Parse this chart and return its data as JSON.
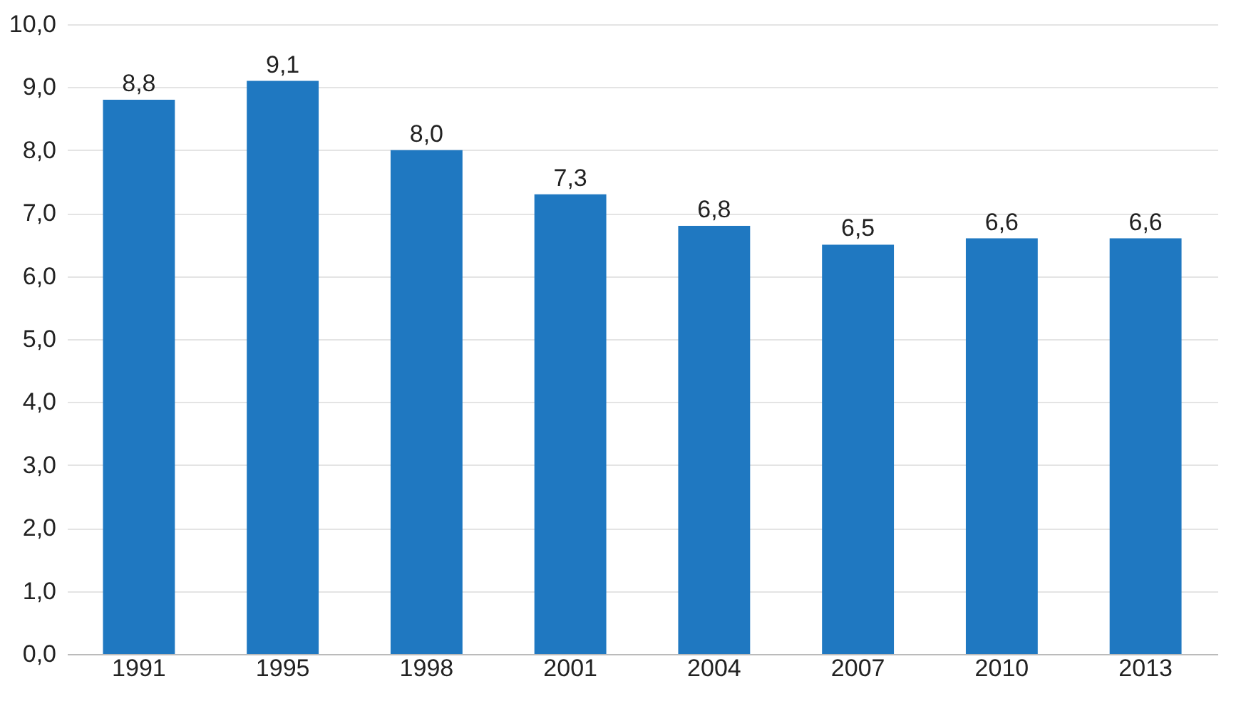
{
  "chart_data": {
    "type": "bar",
    "categories": [
      "1991",
      "1995",
      "1998",
      "2001",
      "2004",
      "2007",
      "2010",
      "2013"
    ],
    "values": [
      8.8,
      9.1,
      8.0,
      7.3,
      6.8,
      6.5,
      6.6,
      6.6
    ],
    "value_labels": [
      "8,8",
      "9,1",
      "8,0",
      "7,3",
      "6,8",
      "6,5",
      "6,6",
      "6,6"
    ],
    "color": "#1f78c1",
    "ylim": [
      0,
      10
    ],
    "yticks": [
      {
        "value": 0,
        "label": "0,0"
      },
      {
        "value": 1,
        "label": "1,0"
      },
      {
        "value": 2,
        "label": "2,0"
      },
      {
        "value": 3,
        "label": "3,0"
      },
      {
        "value": 4,
        "label": "4,0"
      },
      {
        "value": 5,
        "label": "5,0"
      },
      {
        "value": 6,
        "label": "6,0"
      },
      {
        "value": 7,
        "label": "7,0"
      },
      {
        "value": 8,
        "label": "8,0"
      },
      {
        "value": 9,
        "label": "9,0"
      },
      {
        "value": 10,
        "label": "10,0"
      }
    ],
    "grid": "y"
  }
}
